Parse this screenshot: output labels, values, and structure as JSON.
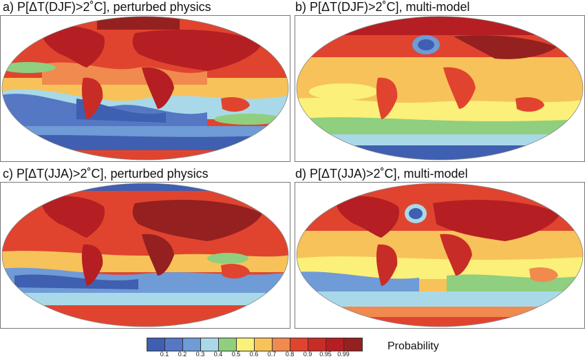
{
  "panels": [
    {
      "id": "a",
      "title": "a) P[ΔT(DJF)>2˚C], perturbed physics"
    },
    {
      "id": "b",
      "title": "b) P[ΔT(DJF)>2˚C], multi-model"
    },
    {
      "id": "c",
      "title": "c) P[ΔT(JJA)>2˚C], perturbed physics"
    },
    {
      "id": "d",
      "title": "d) P[ΔT(JJA)>2˚C], multi-model"
    }
  ],
  "colorbar": {
    "title": "Probability",
    "ticks": [
      "0.1",
      "0.2",
      "0.3",
      "0.4",
      "0.5",
      "0.6",
      "0.7",
      "0.8",
      "0.9",
      "0.95",
      "0.99"
    ],
    "colors": [
      "#3f5fb0",
      "#5577c4",
      "#6f9bd6",
      "#a9d9e8",
      "#8fcf7f",
      "#fbf07a",
      "#f7c25a",
      "#f08a4e",
      "#e0442f",
      "#c82c26",
      "#b51f23",
      "#952020"
    ]
  }
}
